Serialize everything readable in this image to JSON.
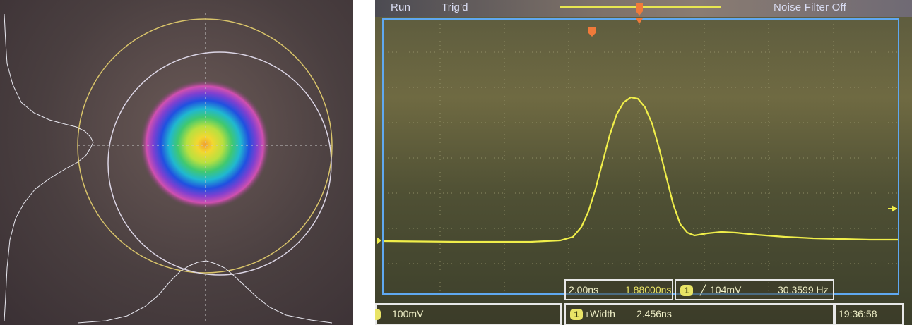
{
  "beam_profiler": {
    "colors": {
      "outer_circle": "#d9c46a",
      "inner_circle": "#dcd6e6",
      "crosshair": "#c8c8c8",
      "profile_trace": "#e8e8f0"
    }
  },
  "oscilloscope": {
    "status": {
      "run": "Run",
      "trigger_state": "Trig'd",
      "noise_filter": "Noise Filter Off"
    },
    "timebase": {
      "per_division": "2.00ns",
      "delay": "1.88000ns"
    },
    "trigger": {
      "channel": "1",
      "slope_icon": "rising-edge-icon",
      "level": "104mV",
      "frequency": "30.3599 Hz"
    },
    "channel1": {
      "scale": "100mV"
    },
    "measurement": {
      "channel": "1",
      "name": "+Width",
      "value": "2.456ns"
    },
    "clock": "19:36:58",
    "colors": {
      "trace": "#f0ee4a",
      "grid_border": "#5fa8f0",
      "trigger_marker": "#f07a3a",
      "label_text": "#d9dcf2"
    }
  }
}
